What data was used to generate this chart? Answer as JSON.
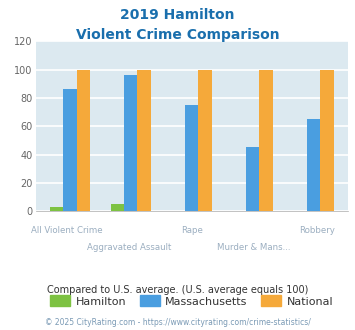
{
  "title_line1": "2019 Hamilton",
  "title_line2": "Violent Crime Comparison",
  "categories": [
    "All Violent Crime",
    "Aggravated Assault",
    "Rape",
    "Murder & Mans...",
    "Robbery"
  ],
  "hamilton": [
    3,
    5,
    0,
    0,
    0
  ],
  "massachusetts": [
    86,
    96,
    75,
    45,
    65
  ],
  "national": [
    100,
    100,
    100,
    100,
    100
  ],
  "hamilton_color": "#7dc242",
  "massachusetts_color": "#4a9ee0",
  "national_color": "#f5a93a",
  "ylim": [
    0,
    120
  ],
  "yticks": [
    0,
    20,
    40,
    60,
    80,
    100,
    120
  ],
  "background_color": "#dce9f0",
  "grid_color": "#ffffff",
  "footnote": "Compared to U.S. average. (U.S. average equals 100)",
  "copyright": "© 2025 CityRating.com - https://www.cityrating.com/crime-statistics/",
  "title_color": "#1a6fad",
  "footnote_color": "#333333",
  "copyright_color": "#7a9ab5",
  "cat_label_color": "#9baec0",
  "legend_text_color": "#333333",
  "legend_labels": [
    "Hamilton",
    "Massachusetts",
    "National"
  ],
  "bar_width": 0.22
}
